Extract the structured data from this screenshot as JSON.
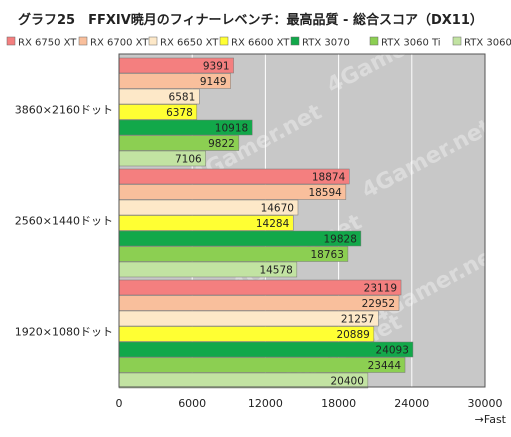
{
  "chart_data": {
    "type": "bar",
    "orientation": "horizontal",
    "title": "グラフ25　FFXIV暁月のフィナーレベンチ：最高品質 - 総合スコア（DX11）",
    "categories": [
      "3860×2160ドット",
      "2560×1440ドット",
      "1920×1080ドット"
    ],
    "series": [
      {
        "name": "RX 6750 XT",
        "color": "#f47f7f",
        "values": [
          9391,
          18874,
          23119
        ]
      },
      {
        "name": "RX 6700 XT",
        "color": "#f9bf9c",
        "values": [
          9149,
          18594,
          22952
        ]
      },
      {
        "name": "RX 6650 XT",
        "color": "#fde8c8",
        "values": [
          6581,
          14670,
          21257
        ]
      },
      {
        "name": "RX 6600 XT",
        "color": "#ffff33",
        "values": [
          6378,
          14284,
          20889
        ]
      },
      {
        "name": "RTX 3070",
        "color": "#12a84a",
        "values": [
          10918,
          19828,
          24093
        ]
      },
      {
        "name": "RTX 3060 Ti",
        "color": "#8ccf52",
        "values": [
          9822,
          18763,
          23444
        ]
      },
      {
        "name": "RTX 3060",
        "color": "#c2e3a2",
        "values": [
          7106,
          14578,
          20400
        ]
      }
    ],
    "xlim": [
      0,
      30000
    ],
    "xticks": [
      0,
      6000,
      12000,
      18000,
      24000,
      30000
    ],
    "xlabel": "→Fast",
    "legend_position": "top",
    "grid": true,
    "plot_background": "#c8c8c8",
    "watermark": "4Gamer.net"
  }
}
